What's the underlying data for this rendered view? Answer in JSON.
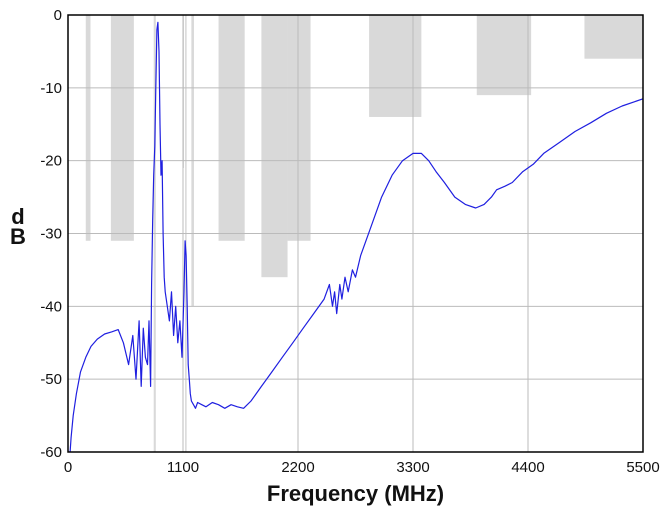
{
  "chart_data": {
    "type": "line",
    "title": "",
    "xlabel": "Frequency (MHz)",
    "ylabel": "dB",
    "xlim": [
      0,
      5500
    ],
    "ylim": [
      -60,
      0
    ],
    "x_ticks": [
      0,
      1100,
      2200,
      3300,
      4400,
      5500
    ],
    "y_ticks": [
      0,
      -10,
      -20,
      -30,
      -40,
      -50,
      -60
    ],
    "x_tick_labels": [
      "0",
      "1100",
      "2200",
      "3300",
      "4400",
      "5500"
    ],
    "y_tick_labels": [
      "0",
      "-10",
      "-20",
      "-30",
      "-40",
      "-50",
      "-60"
    ],
    "grid": true,
    "colors": {
      "line": "#1f1fe0",
      "mask": "#d9d9d9",
      "grid": "#bbbbbb"
    },
    "mask_regions": [
      {
        "x0": 170,
        "x1": 215,
        "floor": -31
      },
      {
        "x0": 410,
        "x1": 630,
        "floor": -31
      },
      {
        "x0": 820,
        "x1": 840,
        "floor": -60
      },
      {
        "x0": 1095,
        "x1": 1110,
        "floor": -21
      },
      {
        "x0": 1120,
        "x1": 1135,
        "floor": -60
      },
      {
        "x0": 1180,
        "x1": 1205,
        "floor": -40
      },
      {
        "x0": 1440,
        "x1": 1690,
        "floor": -31
      },
      {
        "x0": 1850,
        "x1": 2100,
        "floor": -36
      },
      {
        "x0": 2100,
        "x1": 2320,
        "floor": -31
      },
      {
        "x0": 2880,
        "x1": 3380,
        "floor": -14
      },
      {
        "x0": 3910,
        "x1": 4430,
        "floor": -11
      },
      {
        "x0": 4940,
        "x1": 5500,
        "floor": -6
      }
    ],
    "series": [
      {
        "x": [
          20,
          30,
          50,
          80,
          120,
          170,
          220,
          280,
          350,
          420,
          480,
          530,
          580,
          620,
          650,
          680,
          700,
          720,
          740,
          760,
          775,
          790,
          800,
          810,
          820,
          830,
          840,
          850,
          860,
          870,
          880,
          890,
          900,
          910,
          920,
          930,
          950,
          970,
          990,
          1010,
          1030,
          1050,
          1070,
          1090,
          1110,
          1120,
          1130,
          1140,
          1150,
          1160,
          1170,
          1180,
          1200,
          1220,
          1240,
          1280,
          1320,
          1380,
          1440,
          1500,
          1560,
          1620,
          1680,
          1750,
          1850,
          1950,
          2050,
          2150,
          2250,
          2350,
          2450,
          2500,
          2530,
          2550,
          2570,
          2600,
          2620,
          2650,
          2680,
          2720,
          2750,
          2800,
          2900,
          3000,
          3100,
          3200,
          3300,
          3380,
          3450,
          3520,
          3600,
          3700,
          3800,
          3900,
          3980,
          4050,
          4100,
          4180,
          4250,
          4350,
          4450,
          4550,
          4700,
          4850,
          5000,
          5150,
          5300,
          5500
        ],
        "y": [
          -60,
          -58,
          -55,
          -52,
          -49,
          -47,
          -45.5,
          -44.5,
          -43.8,
          -43.5,
          -43.2,
          -45,
          -48,
          -44,
          -50,
          -42,
          -51,
          -43,
          -47,
          -48,
          -42,
          -51,
          -37,
          -28,
          -22,
          -18,
          -10,
          -2,
          -1,
          -5,
          -15,
          -22,
          -20,
          -30,
          -36,
          -38,
          -40,
          -42,
          -38,
          -44,
          -40,
          -45,
          -42,
          -47,
          -38,
          -31,
          -33,
          -40,
          -48,
          -50,
          -52,
          -53,
          -53.5,
          -54,
          -53.2,
          -53.5,
          -53.8,
          -53.2,
          -53.5,
          -54,
          -53.5,
          -53.8,
          -54,
          -53,
          -51,
          -49,
          -47,
          -45,
          -43,
          -41,
          -39,
          -37,
          -40,
          -38,
          -41,
          -37,
          -39,
          -36,
          -38,
          -35,
          -36,
          -33,
          -29,
          -25,
          -22,
          -20,
          -19,
          -19,
          -20,
          -21.5,
          -23,
          -25,
          -26,
          -26.5,
          -26,
          -25,
          -24,
          -23.5,
          -23,
          -21.5,
          -20.5,
          -19,
          -17.5,
          -16,
          -14.8,
          -13.5,
          -12.5,
          -11.5
        ]
      }
    ]
  }
}
